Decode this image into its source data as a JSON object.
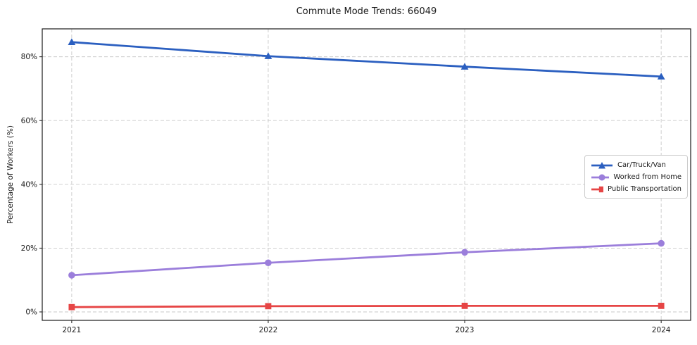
{
  "chart_data": {
    "type": "line",
    "title": "Commute Mode Trends: 66049",
    "xlabel": "",
    "ylabel": "Percentage of Workers (%)",
    "x": [
      2021,
      2022,
      2023,
      2024
    ],
    "x_tick_labels": [
      "2021",
      "2022",
      "2023",
      "2024"
    ],
    "y_ticks": [
      0,
      20,
      40,
      60,
      80
    ],
    "y_tick_labels": [
      "0%",
      "20%",
      "40%",
      "60%",
      "80%"
    ],
    "xlim": [
      2020.85,
      2024.15
    ],
    "ylim": [
      -2.65,
      88.75
    ],
    "grid": true,
    "grid_style": "dashed",
    "grid_color": "#c9c9c9",
    "legend_position": "center right",
    "series": [
      {
        "name": "Car/Truck/Van",
        "color": "#2b5fc0",
        "marker": "triangle",
        "values": [
          84.6,
          80.2,
          76.9,
          73.8
        ]
      },
      {
        "name": "Worked from Home",
        "color": "#9b7edb",
        "marker": "circle",
        "values": [
          11.5,
          15.4,
          18.7,
          21.5
        ]
      },
      {
        "name": "Public Transportation",
        "color": "#e64545",
        "marker": "square",
        "values": [
          1.5,
          1.8,
          1.9,
          1.9
        ]
      }
    ]
  }
}
